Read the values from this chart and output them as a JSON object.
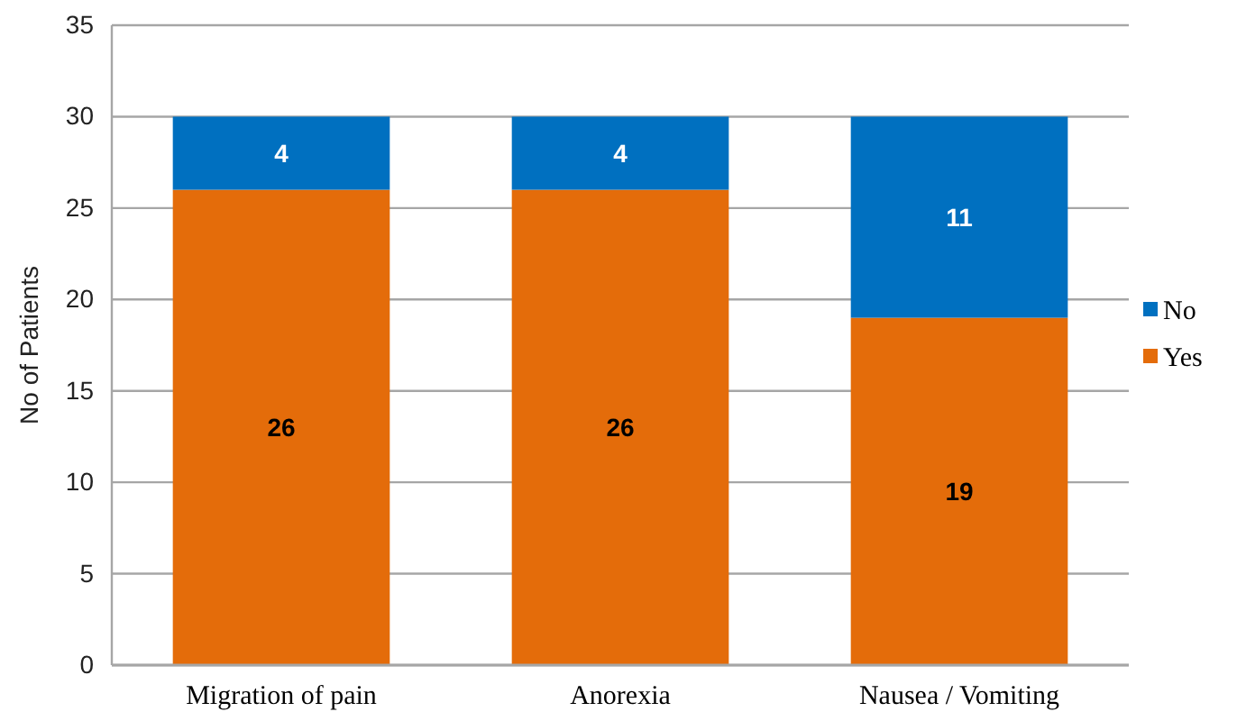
{
  "chart_data": {
    "type": "bar",
    "stacked": true,
    "ylabel": "No of Patients",
    "categories": [
      "Migration of pain",
      "Anorexia",
      "Nausea / Vomiting"
    ],
    "series": [
      {
        "name": "Yes",
        "color": "#e46c0a",
        "values": [
          26,
          26,
          19
        ]
      },
      {
        "name": "No",
        "color": "#0070c0",
        "values": [
          4,
          4,
          11
        ]
      }
    ],
    "ylim": [
      0,
      35
    ],
    "yticks": [
      0,
      5,
      10,
      15,
      20,
      25,
      30,
      35
    ],
    "grid": "y",
    "legend": "right",
    "data_labels": true
  }
}
